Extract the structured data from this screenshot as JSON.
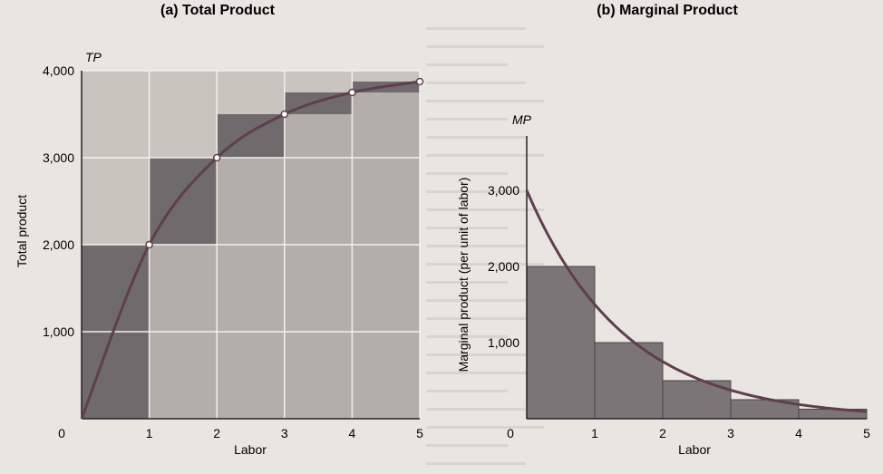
{
  "chart_data": [
    {
      "type": "bar",
      "title": "(a) Total Product",
      "ylabel": "Total product",
      "y_symbol": "TP",
      "xlabel": "Labor",
      "x_ticks": [
        "0",
        "1",
        "2",
        "3",
        "4",
        "5"
      ],
      "y_ticks": [
        "0",
        "1,000",
        "2,000",
        "3,000",
        "4,000"
      ],
      "xlim": [
        0,
        5
      ],
      "ylim": [
        0,
        4000
      ],
      "categories": [
        "1",
        "2",
        "3",
        "4",
        "5"
      ],
      "values": [
        2000,
        3000,
        3500,
        3750,
        3875
      ],
      "curve_points": [
        [
          0,
          0
        ],
        [
          1,
          2000
        ],
        [
          2,
          3000
        ],
        [
          3,
          3500
        ],
        [
          4,
          3750
        ],
        [
          5,
          3875
        ]
      ],
      "grid": true
    },
    {
      "type": "bar",
      "title": "(b) Marginal Product",
      "ylabel": "Marginal product (per unit of labor)",
      "y_symbol": "MP",
      "xlabel": "Labor",
      "x_ticks": [
        "0",
        "1",
        "2",
        "3",
        "4",
        "5"
      ],
      "y_ticks": [
        "1,000",
        "2,000",
        "3,000"
      ],
      "xlim": [
        0,
        5
      ],
      "ylim": [
        0,
        3500
      ],
      "categories": [
        "1",
        "2",
        "3",
        "4",
        "5"
      ],
      "values": [
        2000,
        1000,
        500,
        250,
        125
      ],
      "curve_start": 3000,
      "grid": false
    }
  ]
}
